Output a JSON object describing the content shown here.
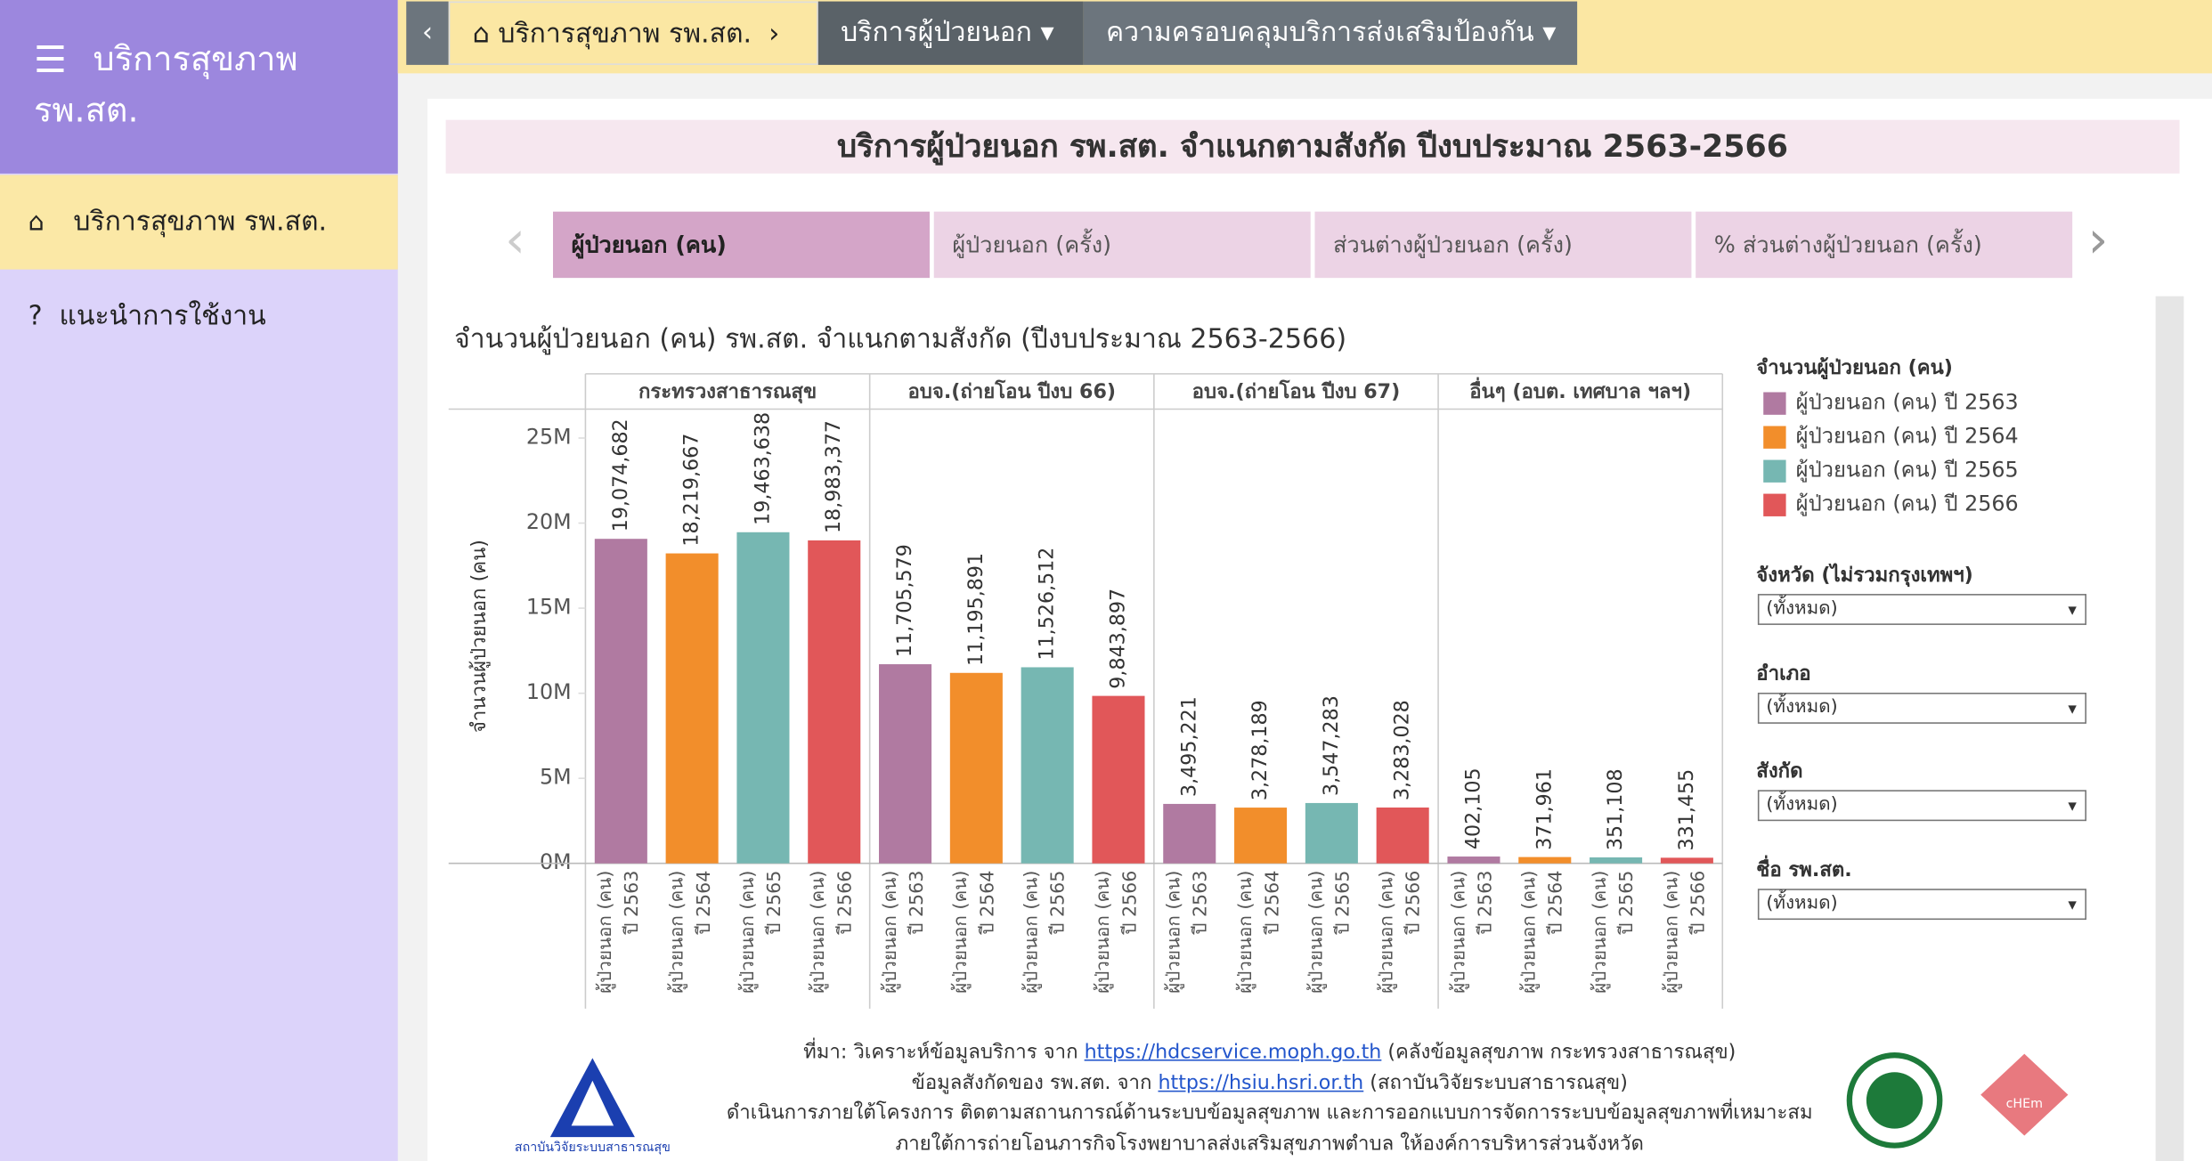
{
  "sidebar": {
    "title": "บริการสุขภาพ รพ.สต.",
    "menu": [
      "บริการสุขภาพ รพ.สต.",
      "แนะนำการใช้งาน"
    ]
  },
  "topbar": {
    "breadcrumb": [
      "บริการสุขภาพ รพ.สต.",
      "บริการผู้ป่วยนอก",
      "ความครอบคลุมบริการส่งเสริมป้องกัน"
    ]
  },
  "header": {
    "title": "บริการผู้ป่วยนอก รพ.สต. จำแนกตามสังกัด ปีงบประมาณ 2563-2566"
  },
  "tabs": [
    "ผู้ป่วยนอก (คน)",
    "ผู้ป่วยนอก (ครั้ง)",
    "ส่วนต่างผู้ป่วยนอก (ครั้ง)",
    "% ส่วนต่างผู้ป่วยนอก (ครั้ง)"
  ],
  "chart_data": {
    "type": "bar",
    "title": "จำนวนผู้ป่วยนอก (คน) รพ.สต. จำแนกตามสังกัด (ปีงบประมาณ 2563-2566)",
    "y_label": "จำนวนผู้ป่วยนอก (คน)",
    "legend_title": "จำนวนผู้ป่วยนอก (คน)",
    "legend": "right",
    "categories": [
      "กระทรวงสาธารณสุข",
      "อบจ.(ถ่ายโอน ปีงบ 66)",
      "อบจ.(ถ่ายโอน ปีงบ 67)",
      "อื่นๆ (อบต. เทศบาล ฯลฯ)"
    ],
    "series": [
      {
        "name": "ผู้ป่วยนอก (คน) ปี 2563",
        "color": "#b07aa1",
        "values": [
          19074682,
          11705579,
          3495221,
          402105
        ],
        "value_labels": [
          "19,074,682",
          "11,705,579",
          "3,495,221",
          "402,105"
        ]
      },
      {
        "name": "ผู้ป่วยนอก (คน) ปี 2564",
        "color": "#f28e2b",
        "values": [
          18219667,
          11195891,
          3278189,
          371961
        ],
        "value_labels": [
          "18,219,667",
          "11,195,891",
          "3,278,189",
          "371,961"
        ]
      },
      {
        "name": "ผู้ป่วยนอก (คน) ปี 2565",
        "color": "#76b7b2",
        "values": [
          19463638,
          11526512,
          3547283,
          351108
        ],
        "value_labels": [
          "19,463,638",
          "11,526,512",
          "3,547,283",
          "351,108"
        ]
      },
      {
        "name": "ผู้ป่วยนอก (คน) ปี 2566",
        "color": "#e15759",
        "values": [
          18983377,
          9843897,
          3283028,
          331455
        ],
        "value_labels": [
          "18,983,377",
          "9,843,897",
          "3,283,028",
          "331,455"
        ]
      }
    ],
    "ylim": [
      0,
      26700000
    ],
    "yticks": [
      {
        "value": 0,
        "label": "0M"
      },
      {
        "value": 5000000,
        "label": "5M"
      },
      {
        "value": 10000000,
        "label": "10M"
      },
      {
        "value": 15000000,
        "label": "15M"
      },
      {
        "value": 20000000,
        "label": "20M"
      },
      {
        "value": 25000000,
        "label": "25M"
      }
    ]
  },
  "filters": [
    {
      "label": "จังหวัด (ไม่รวมกรุงเทพฯ)",
      "value": "(ทั้งหมด)"
    },
    {
      "label": "อำเภอ",
      "value": "(ทั้งหมด)"
    },
    {
      "label": "สังกัด",
      "value": "(ทั้งหมด)"
    },
    {
      "label": "ชื่อ รพ.สต.",
      "value": "(ทั้งหมด)"
    }
  ],
  "footer": {
    "lines": [
      [
        "ที่มา: วิเคราะห์ข้อมูลบริการ จาก ",
        "https://hdcservice.moph.go.th",
        " (คลังข้อมูลสุขภาพ กระทรวงสาธารณสุข)"
      ],
      [
        "ข้อมูลสังกัดของ รพ.สต. จาก ",
        "https://hsiu.hsri.or.th",
        " (สถาบันวิจัยระบบสาธารณสุข)"
      ],
      [
        "ดำเนินการภายใต้โครงการ ติดตามสถานการณ์ด้านระบบข้อมูลสุขภาพ และการออกแบบการจัดการระบบข้อมูลสุขภาพที่เหมาะสม"
      ],
      [
        "ภายใต้การถ่ายโอนภารกิจโรงพยาบาลส่งเสริมสุขภาพตำบล ให้องค์การบริหารส่วนจังหวัด"
      ]
    ]
  },
  "logos": [
    "สถาบันวิจัยระบบสาธารณสุข",
    "cHEm"
  ]
}
